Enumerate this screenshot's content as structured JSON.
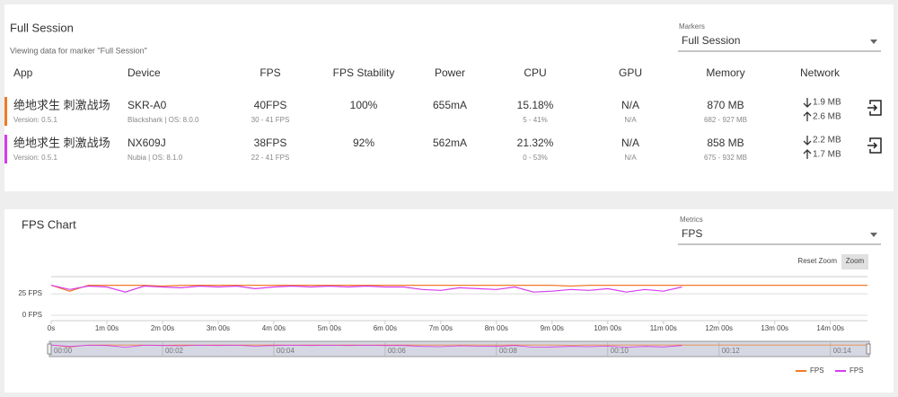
{
  "session": {
    "title": "Full Session",
    "subtitle": "Viewing data for marker \"Full Session\"",
    "markers_label": "Markers",
    "marker": "Full Session",
    "columns": [
      "App",
      "Device",
      "FPS",
      "FPS Stability",
      "Power",
      "CPU",
      "GPU",
      "Memory",
      "Network"
    ],
    "rows": [
      {
        "color": "#f07a28",
        "app": "绝地求生 刺激战场",
        "version": "Version: 0.5.1",
        "device": "SKR-A0",
        "device_info": "Blackshark | OS: 8.0.0",
        "fps": "40FPS",
        "fps_range": "30 - 41 FPS",
        "stability": "100%",
        "power": "655mA",
        "cpu": "15.18%",
        "cpu_range": "5 - 41%",
        "gpu": "N/A",
        "gpu_sub": "N/A",
        "memory": "870 MB",
        "memory_range": "682 - 927 MB",
        "down": "1.9 MB",
        "up": "2.6 MB"
      },
      {
        "color": "#d63bf0",
        "app": "绝地求生 刺激战场",
        "version": "Version: 0.5.1",
        "device": "NX609J",
        "device_info": "Nubia | OS: 8.1.0",
        "fps": "38FPS",
        "fps_range": "22 - 41 FPS",
        "stability": "92%",
        "power": "562mA",
        "cpu": "21.32%",
        "cpu_range": "0 - 53%",
        "gpu": "N/A",
        "gpu_sub": "N/A",
        "memory": "858 MB",
        "memory_range": "675 - 932 MB",
        "down": "2.2 MB",
        "up": "1.7 MB"
      }
    ]
  },
  "chart_panel": {
    "metrics_label": "Metrics",
    "metric": "FPS",
    "reset": "Reset Zoom",
    "zoom": "Zoom"
  },
  "chart_data": {
    "type": "line",
    "title": "FPS Chart",
    "x": [
      0,
      20,
      40,
      60,
      80,
      100,
      120,
      140,
      160,
      180,
      200,
      220,
      240,
      260,
      280,
      300,
      320,
      340,
      360,
      380,
      400,
      420,
      440,
      460,
      480,
      500,
      520,
      540,
      560,
      580,
      600,
      620,
      640,
      660,
      680,
      700,
      720,
      740,
      760,
      780,
      800,
      820,
      840,
      860,
      880
    ],
    "series": [
      {
        "name": "FPS",
        "color": "#f07a28",
        "values": [
          35,
          28,
          35,
          35,
          35,
          35,
          34,
          35,
          35,
          35,
          35,
          35,
          35,
          35,
          35,
          35,
          35,
          35,
          35,
          35,
          35,
          35,
          35,
          35,
          35,
          35,
          35,
          35,
          34,
          35,
          35,
          35,
          35,
          35,
          35,
          35,
          35,
          35,
          35,
          35,
          35,
          35,
          35,
          35,
          35
        ]
      },
      {
        "name": "FPS",
        "color": "#d63bf0",
        "values": [
          35,
          30,
          34,
          33,
          27,
          34,
          33,
          32,
          34,
          33,
          34,
          31,
          33,
          34,
          33,
          34,
          33,
          34,
          33,
          33,
          30,
          29,
          32,
          31,
          30,
          33,
          27,
          28,
          30,
          29,
          31,
          27,
          30,
          28,
          33,
          null,
          null,
          null,
          null,
          null,
          null,
          null,
          null,
          null,
          null
        ]
      }
    ],
    "xlim": [
      0,
      880
    ],
    "ylim": [
      0,
      45
    ],
    "yticks": [
      {
        "value": 0,
        "label": "0 FPS"
      },
      {
        "value": 25,
        "label": "25 FPS"
      }
    ],
    "xticks": [
      {
        "value": 0,
        "label": "0s"
      },
      {
        "value": 60,
        "label": "1m 00s"
      },
      {
        "value": 120,
        "label": "2m 00s"
      },
      {
        "value": 180,
        "label": "3m 00s"
      },
      {
        "value": 240,
        "label": "4m 00s"
      },
      {
        "value": 300,
        "label": "5m 00s"
      },
      {
        "value": 360,
        "label": "6m 00s"
      },
      {
        "value": 420,
        "label": "7m 00s"
      },
      {
        "value": 480,
        "label": "8m 00s"
      },
      {
        "value": 540,
        "label": "9m 00s"
      },
      {
        "value": 600,
        "label": "10m 00s"
      },
      {
        "value": 660,
        "label": "11m 00s"
      },
      {
        "value": 720,
        "label": "12m 00s"
      },
      {
        "value": 780,
        "label": "13m 00s"
      },
      {
        "value": 840,
        "label": "14m 00s"
      }
    ],
    "navigator_ticks": [
      {
        "value": 0,
        "label": "00:00"
      },
      {
        "value": 120,
        "label": "00:02"
      },
      {
        "value": 240,
        "label": "00:04"
      },
      {
        "value": 360,
        "label": "00:06"
      },
      {
        "value": 480,
        "label": "00:08"
      },
      {
        "value": 600,
        "label": "00:10"
      },
      {
        "value": 720,
        "label": "00:12"
      },
      {
        "value": 840,
        "label": "00:14"
      }
    ],
    "grid": true
  }
}
